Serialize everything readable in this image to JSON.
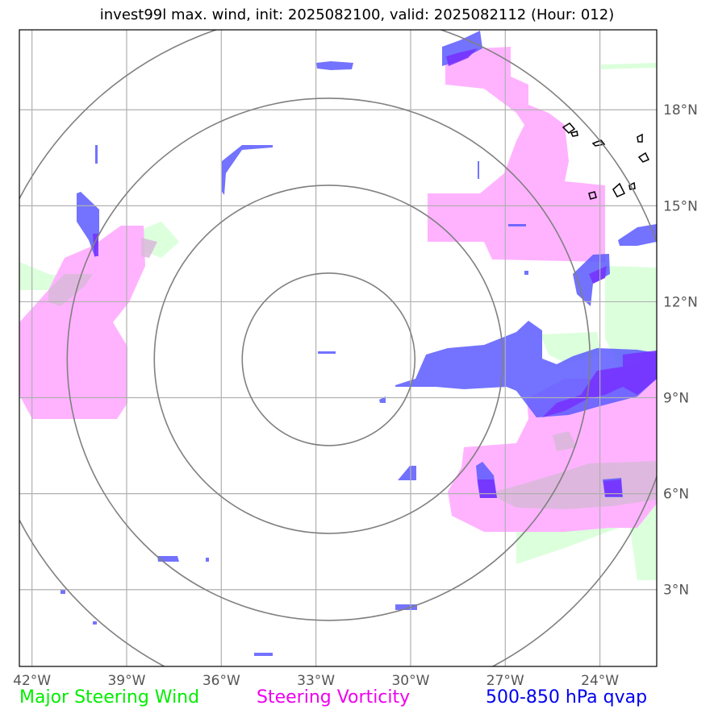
{
  "title": "invest99l max. wind, init: 2025082100, valid: 2025082112 (Hour: 012)",
  "colors": {
    "steering_wind": "#00ee00",
    "steering_vorticity": "#ee00ee",
    "qvap": "#0000ee",
    "vort_fill": "#ffb3ff",
    "wind_fill": "#dcffdc",
    "qvap_fill": "#5a5aff",
    "grid": "#b0b0b0",
    "rings": "#808080"
  },
  "legend": {
    "wind": "Major Steering Wind",
    "vorticity": "Steering Vorticity",
    "qvap": "500-850 hPa qvap"
  },
  "map": {
    "lon_range": [
      -42.4,
      -22.2
    ],
    "lat_range": [
      0.6,
      20.5
    ],
    "lon_ticks": [
      -42,
      -39,
      -36,
      -33,
      -30,
      -27,
      -24
    ],
    "lat_ticks": [
      3,
      6,
      9,
      12,
      15,
      18
    ],
    "lon_labels": [
      "42°W",
      "39°W",
      "36°W",
      "33°W",
      "30°W",
      "27°W",
      "24°W"
    ],
    "lat_labels": [
      "3°N",
      "6°N",
      "9°N",
      "12°N",
      "15°N",
      "18°N"
    ],
    "storm_center": {
      "lon": -32.6,
      "lat": 10.2
    }
  }
}
